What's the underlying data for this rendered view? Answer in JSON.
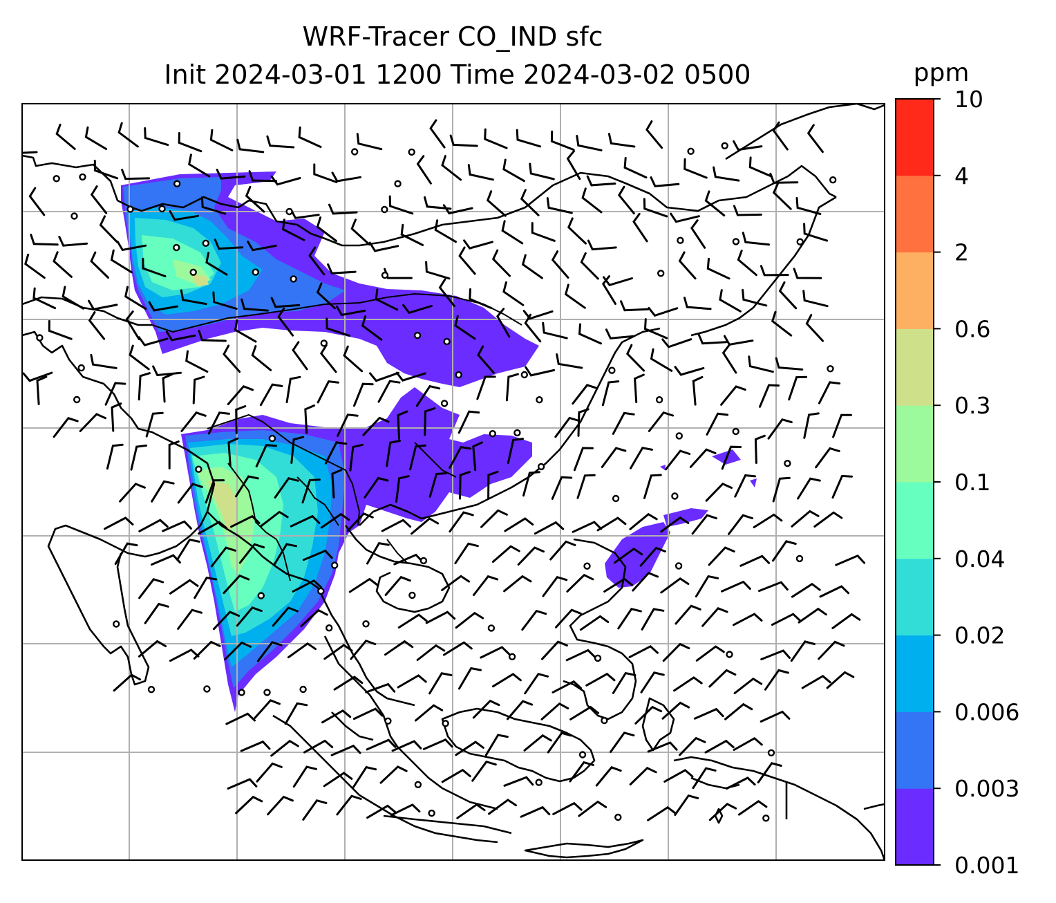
{
  "title": {
    "line1": "WRF-Tracer CO_IND sfc",
    "line2": "Init 2024-03-01 1200 Time 2024-03-02 0500"
  },
  "colorbar": {
    "unit": "ppm",
    "levels": [
      "0.001",
      "0.003",
      "0.006",
      "0.02",
      "0.04",
      "0.1",
      "0.3",
      "0.6",
      "2",
      "4",
      "10"
    ],
    "colors": [
      "#6a2cff",
      "#3375f4",
      "#00b0ee",
      "#33ddd7",
      "#66ffc0",
      "#9cf99c",
      "#cfe08a",
      "#fdb062",
      "#ff7240",
      "#ff2a1a"
    ]
  },
  "map": {
    "gridlines": "on",
    "gridline_color": "#b0b0b0",
    "coastline_color": "#000000",
    "background": "#ffffff",
    "layers": [
      "coastlines",
      "country-borders",
      "tracer-concentration-fill",
      "wind-barbs",
      "calm-wind-circles"
    ]
  }
}
